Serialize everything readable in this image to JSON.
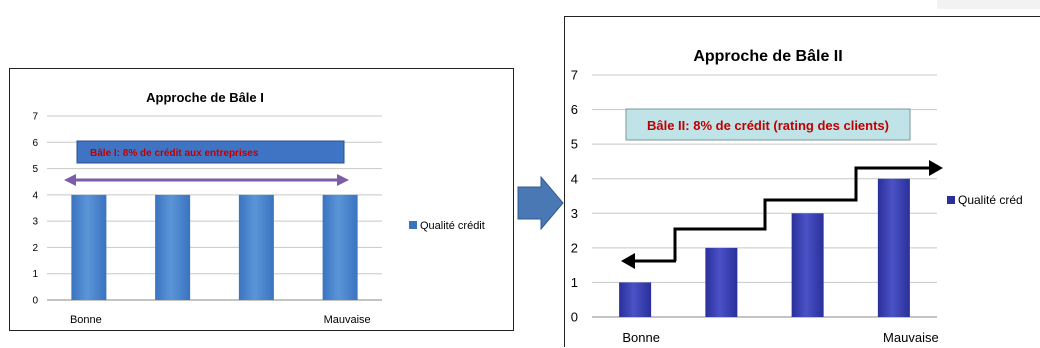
{
  "chart_data": [
    {
      "type": "bar",
      "title": "Approche de Bâle I",
      "categories": [
        "Bonne",
        "",
        "",
        "Mauvaise"
      ],
      "series": [
        {
          "name": "Qualité crédit",
          "values": [
            4,
            4,
            4,
            4
          ]
        }
      ],
      "ylim": [
        0,
        7
      ],
      "yticks": [
        "0",
        "1",
        "2",
        "3",
        "4",
        "5",
        "6",
        "7"
      ],
      "grid": true,
      "legend": "right",
      "annotation": "Bâle I: 8% de crédit aux entreprises",
      "colors": {
        "bar": "#3a73c0",
        "bar_light": "#5b95d8",
        "annotation_fill": "#3f74c4",
        "annotation_text": "#c00000",
        "arrow": "#7b5ea7"
      }
    },
    {
      "type": "bar",
      "title": "Approche de Bâle II",
      "categories": [
        "Bonne",
        "",
        "",
        "Mauvaise"
      ],
      "series": [
        {
          "name": "Qualité créd",
          "values": [
            1,
            2,
            3,
            4
          ]
        }
      ],
      "ylim": [
        0,
        7
      ],
      "yticks": [
        "0",
        "1",
        "2",
        "3",
        "4",
        "5",
        "6",
        "7"
      ],
      "grid": true,
      "legend": "right",
      "annotation": "Bâle II: 8% de crédit (rating des clients)",
      "colors": {
        "bar": "#2a2f9a",
        "bar_light": "#4a52c6",
        "annotation_fill": "#bfe3e6",
        "annotation_text": "#c00000",
        "step_arrow": "#000000"
      }
    }
  ],
  "transition_arrow_color": "#4a78b5"
}
